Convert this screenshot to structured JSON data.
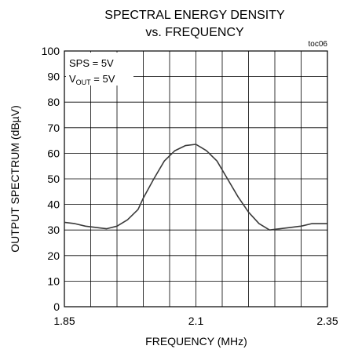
{
  "chart_data": {
    "type": "line",
    "title_line1": "SPECTRAL ENERGY DENSITY",
    "title_line2": "vs. FREQUENCY",
    "tag": "toc06",
    "xlabel": "FREQUENCY (MHz)",
    "ylabel": "OUTPUT SPECTRUM (dBµV)",
    "xlim": [
      1.85,
      2.35
    ],
    "ylim": [
      0,
      100
    ],
    "x_ticks": [
      "1.85",
      "2.1",
      "2.35"
    ],
    "y_ticks": [
      "0",
      "10",
      "20",
      "30",
      "40",
      "50",
      "60",
      "70",
      "80",
      "90",
      "100"
    ],
    "grid": true,
    "annotation": {
      "line1": "SPS = 5V",
      "line2_main": "V",
      "line2_sub": "OUT",
      "line2_rest": " = 5V"
    },
    "series": [
      {
        "x": [
          1.85,
          1.87,
          1.89,
          1.91,
          1.93,
          1.95,
          1.97,
          1.99,
          2.0,
          2.02,
          2.04,
          2.06,
          2.08,
          2.1,
          2.12,
          2.14,
          2.16,
          2.18,
          2.2,
          2.22,
          2.24,
          2.26,
          2.28,
          2.3,
          2.32,
          2.35
        ],
        "y": [
          33,
          32.5,
          31.5,
          31,
          30.5,
          31.5,
          34,
          38,
          42.5,
          50,
          57,
          61,
          63,
          63.5,
          61,
          57,
          50,
          43,
          37,
          32.5,
          30,
          30.5,
          31,
          31.5,
          32.5,
          32.5
        ]
      }
    ]
  }
}
